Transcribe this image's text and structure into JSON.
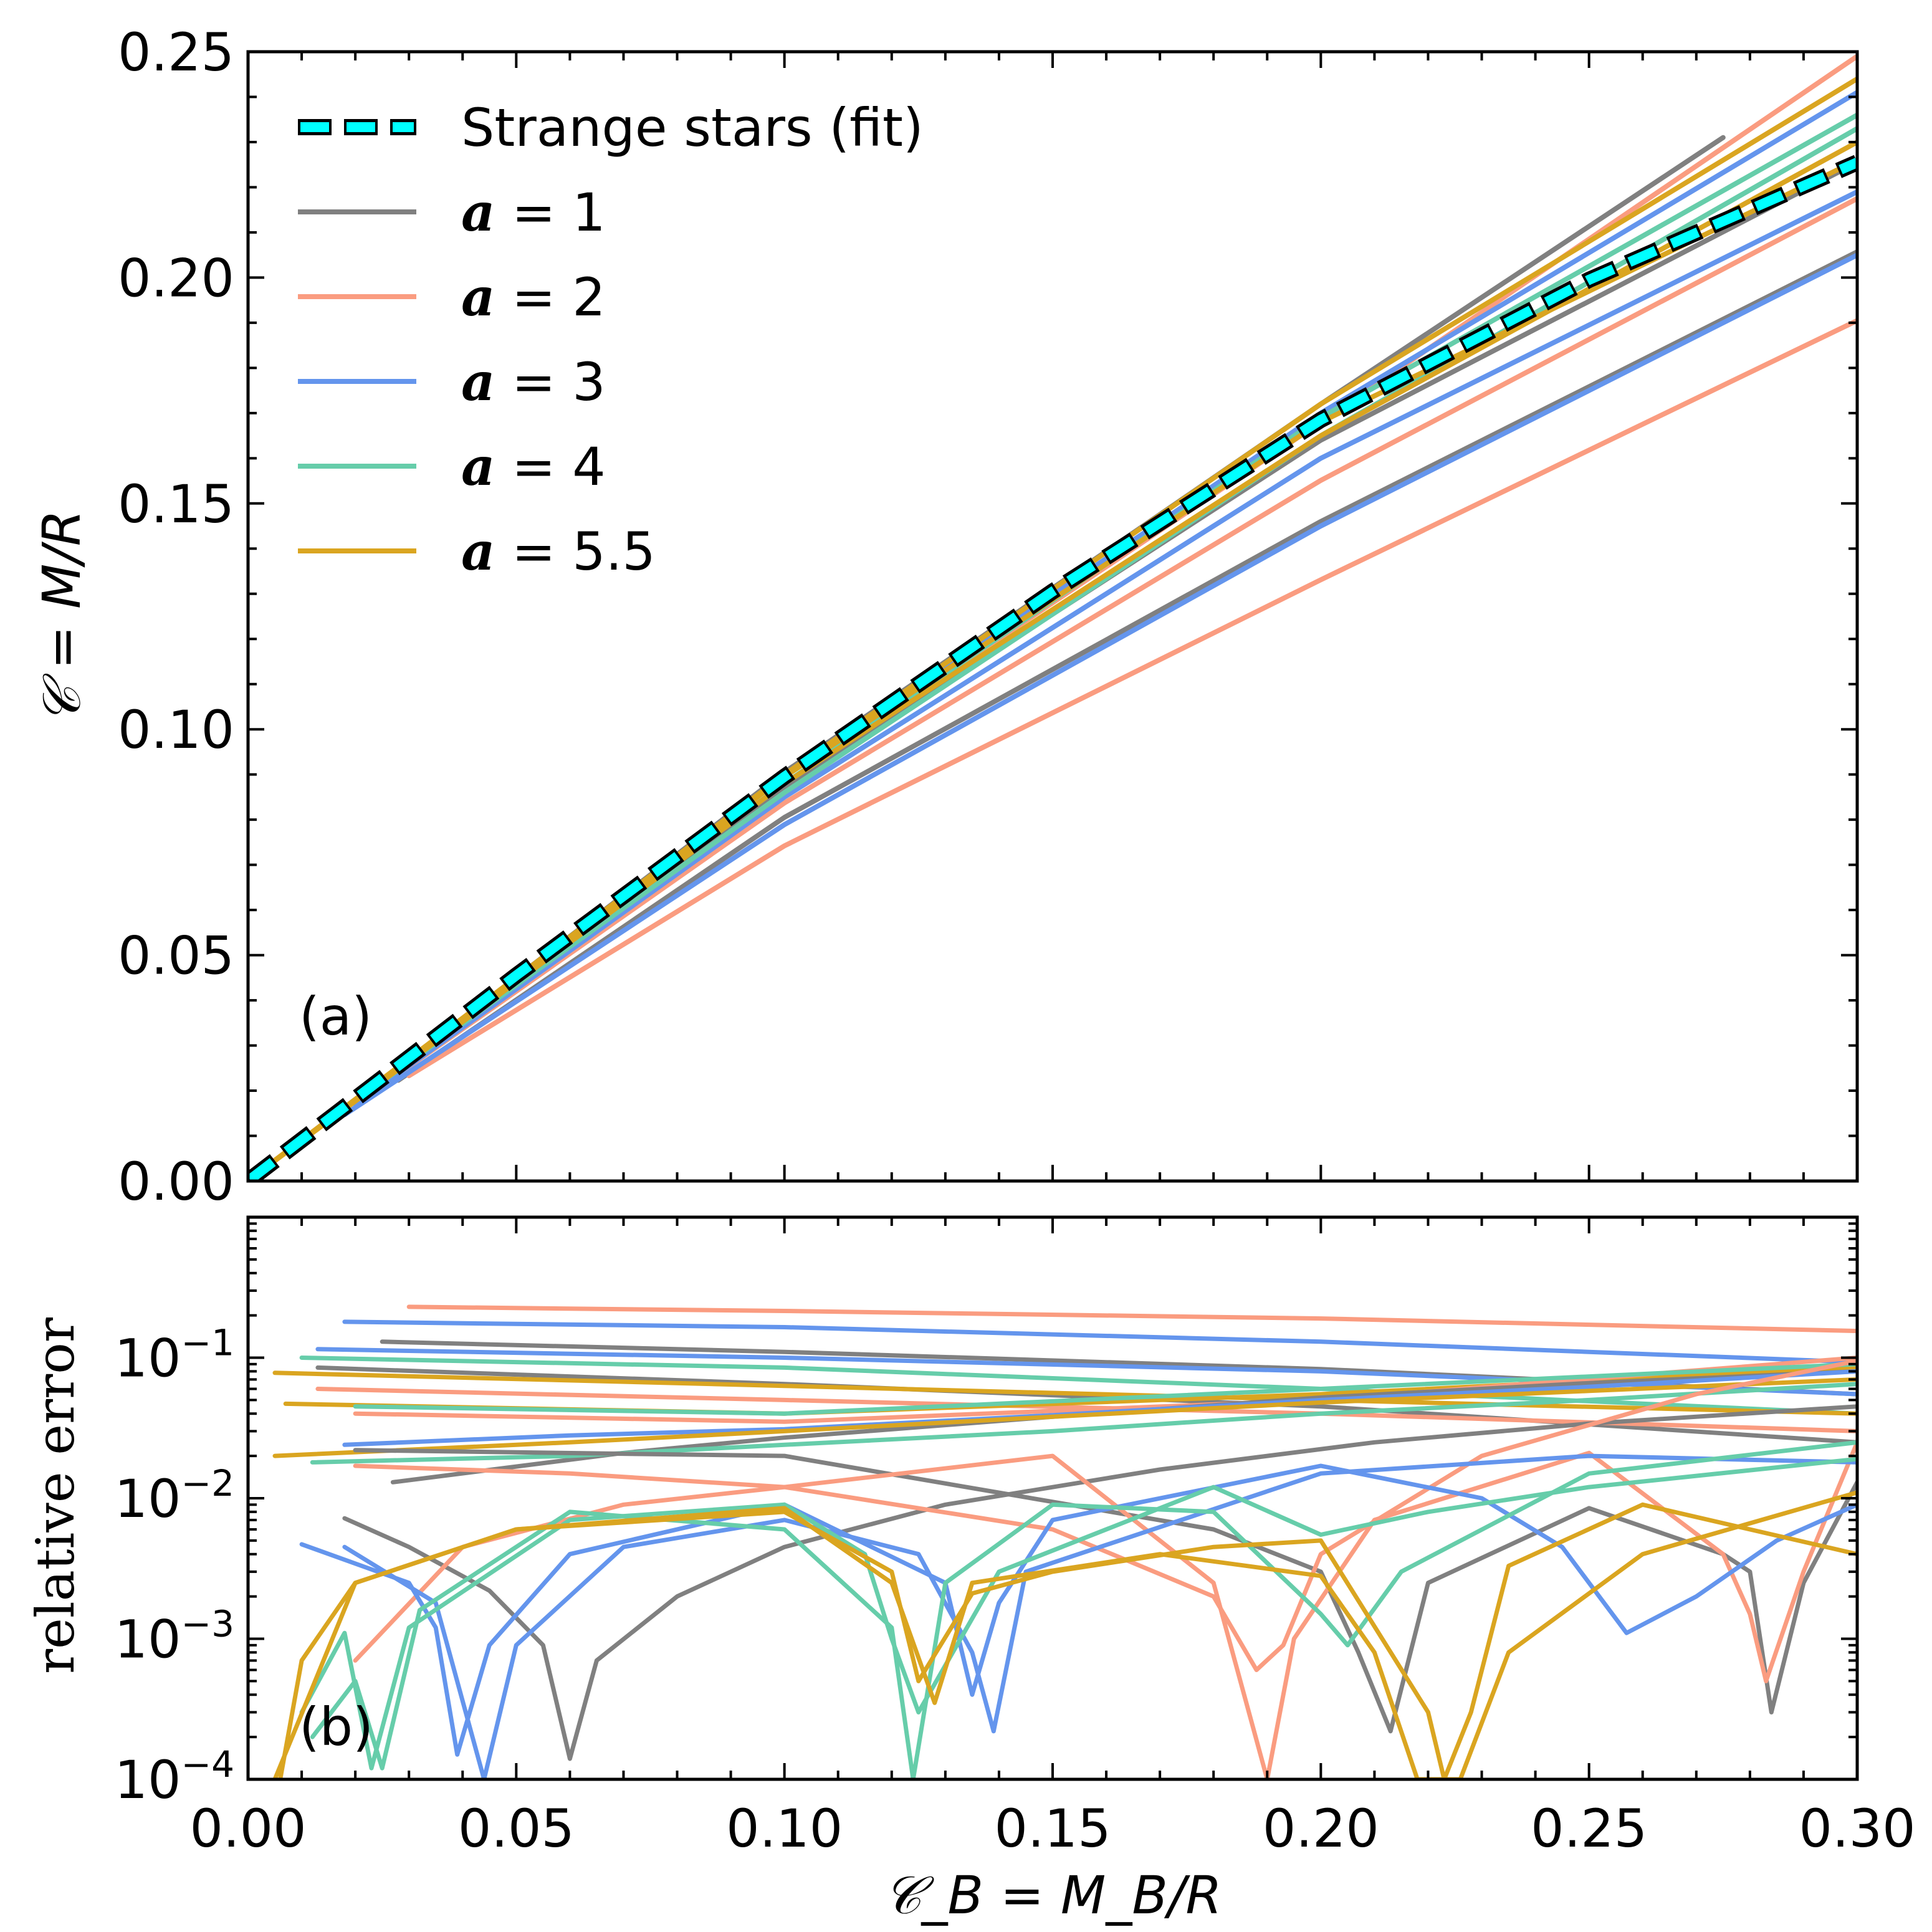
{
  "chart_data": [
    {
      "panel": "top",
      "type": "line",
      "panel_label": "(a)",
      "xlabel": "𝒞_B = M_B/R",
      "ylabel": "𝒞 = M/R",
      "xlim": [
        0,
        0.3
      ],
      "ylim": [
        0,
        0.25
      ],
      "x_ticks": [
        "0.00",
        "0.05",
        "0.10",
        "0.15",
        "0.20",
        "0.25",
        "0.30"
      ],
      "y_ticks": [
        "0.00",
        "0.05",
        "0.10",
        "0.15",
        "0.20",
        "0.25"
      ],
      "legend": {
        "position": "top-left",
        "entries": [
          {
            "label": "Strange stars (fit)",
            "style": "dashed",
            "color": "#00ffff"
          },
          {
            "symbol": "a",
            "label": " = 1",
            "color": "#808080"
          },
          {
            "symbol": "a",
            "label": " = 2",
            "color": "#fa9c80"
          },
          {
            "symbol": "a",
            "label": " = 3",
            "color": "#6495ed"
          },
          {
            "symbol": "a",
            "label": " = 4",
            "color": "#66cdaa"
          },
          {
            "symbol": "a",
            "label": " = 5.5",
            "color": "#daa520"
          }
        ]
      },
      "fit": {
        "name": "Strange stars (fit)",
        "x": [
          0,
          0.05,
          0.1,
          0.15,
          0.2,
          0.25,
          0.3
        ],
        "y": [
          0,
          0.0455,
          0.0895,
          0.1305,
          0.1685,
          0.1995,
          0.2255
        ]
      },
      "series": [
        {
          "group": "a = 1",
          "color": "#808080",
          "x": [
            0.02,
            0.1,
            0.2,
            0.275
          ],
          "y": [
            0.0178,
            0.0905,
            0.172,
            0.231
          ]
        },
        {
          "group": "a = 1",
          "color": "#808080",
          "x": [
            0.025,
            0.1,
            0.2,
            0.3
          ],
          "y": [
            0.021,
            0.087,
            0.164,
            0.2255
          ]
        },
        {
          "group": "a = 1",
          "color": "#808080",
          "x": [
            0.028,
            0.1,
            0.2,
            0.3
          ],
          "y": [
            0.0223,
            0.0805,
            0.146,
            0.2057
          ]
        },
        {
          "group": "a = 2",
          "color": "#fa9c80",
          "x": [
            0.03,
            0.1,
            0.2,
            0.3
          ],
          "y": [
            0.0233,
            0.0742,
            0.1331,
            0.1905
          ]
        },
        {
          "group": "a = 2",
          "color": "#fa9c80",
          "x": [
            0.02,
            0.1,
            0.2,
            0.3
          ],
          "y": [
            0.017,
            0.0837,
            0.1551,
            0.2175
          ]
        },
        {
          "group": "a = 2",
          "color": "#fa9c80",
          "x": [
            0.02,
            0.1,
            0.2,
            0.3
          ],
          "y": [
            0.018,
            0.088,
            0.168,
            0.249
          ]
        },
        {
          "group": "a = 3",
          "color": "#6495ed",
          "x": [
            0.018,
            0.1,
            0.2,
            0.3
          ],
          "y": [
            0.0147,
            0.0789,
            0.145,
            0.205
          ]
        },
        {
          "group": "a = 3",
          "color": "#6495ed",
          "x": [
            0.02,
            0.1,
            0.2,
            0.3
          ],
          "y": [
            0.017,
            0.085,
            0.16,
            0.219
          ]
        },
        {
          "group": "a = 3",
          "color": "#6495ed",
          "x": [
            0.02,
            0.1,
            0.2,
            0.3
          ],
          "y": [
            0.018,
            0.0895,
            0.17,
            0.241
          ]
        },
        {
          "group": "a = 4",
          "color": "#66cdaa",
          "x": [
            0.015,
            0.1,
            0.2,
            0.3
          ],
          "y": [
            0.0135,
            0.086,
            0.165,
            0.233
          ]
        },
        {
          "group": "a = 4",
          "color": "#66cdaa",
          "x": [
            0.015,
            0.1,
            0.2,
            0.3
          ],
          "y": [
            0.0137,
            0.088,
            0.169,
            0.236
          ]
        },
        {
          "group": "a = 5.5",
          "color": "#daa520",
          "x": [
            0.005,
            0.1,
            0.2,
            0.3
          ],
          "y": [
            0.0046,
            0.09,
            0.172,
            0.244
          ]
        },
        {
          "group": "a = 5.5",
          "color": "#daa520",
          "x": [
            0.005,
            0.1,
            0.2,
            0.3
          ],
          "y": [
            0.0045,
            0.088,
            0.165,
            0.23
          ]
        },
        {
          "group": "a = 5.5",
          "color": "#daa520",
          "x": [
            0.005,
            0.1,
            0.2,
            0.3
          ],
          "y": [
            0.0045,
            0.0895,
            0.168,
            0.226
          ]
        }
      ]
    },
    {
      "panel": "bottom",
      "type": "line",
      "panel_label": "(b)",
      "xlabel": "𝒞_B = M_B/R",
      "ylabel": "relative error",
      "yscale": "log",
      "xlim": [
        0,
        0.3
      ],
      "ylim": [
        0.0001,
        1
      ],
      "x_ticks": [
        "0.00",
        "0.05",
        "0.10",
        "0.15",
        "0.20",
        "0.25",
        "0.30"
      ],
      "y_ticks": [
        {
          "base": "10",
          "exp": "−1",
          "value": 0.1
        },
        {
          "base": "10",
          "exp": "−2",
          "value": 0.01
        },
        {
          "base": "10",
          "exp": "−3",
          "value": 0.001
        },
        {
          "base": "10",
          "exp": "−4",
          "value": 0.0001
        }
      ],
      "series": [
        {
          "color": "#fa9c80",
          "x": [
            0.03,
            0.1,
            0.2,
            0.3
          ],
          "y": [
            0.23,
            0.215,
            0.19,
            0.155
          ]
        },
        {
          "color": "#6495ed",
          "x": [
            0.018,
            0.1,
            0.2,
            0.3
          ],
          "y": [
            0.18,
            0.165,
            0.13,
            0.093
          ]
        },
        {
          "color": "#808080",
          "x": [
            0.025,
            0.1,
            0.2,
            0.3
          ],
          "y": [
            0.13,
            0.11,
            0.083,
            0.055
          ]
        },
        {
          "color": "#6495ed",
          "x": [
            0.013,
            0.1,
            0.2,
            0.3
          ],
          "y": [
            0.115,
            0.1,
            0.08,
            0.055
          ]
        },
        {
          "color": "#66cdaa",
          "x": [
            0.01,
            0.1,
            0.2,
            0.3
          ],
          "y": [
            0.1,
            0.085,
            0.06,
            0.04
          ]
        },
        {
          "color": "#808080",
          "x": [
            0.013,
            0.1,
            0.2,
            0.3
          ],
          "y": [
            0.085,
            0.065,
            0.045,
            0.025
          ]
        },
        {
          "color": "#fa9c80",
          "x": [
            0.013,
            0.1,
            0.2,
            0.3
          ],
          "y": [
            0.06,
            0.05,
            0.04,
            0.03
          ]
        },
        {
          "color": "#daa520",
          "x": [
            0.005,
            0.1,
            0.2,
            0.3
          ],
          "y": [
            0.078,
            0.063,
            0.05,
            0.04
          ]
        },
        {
          "color": "#daa520",
          "x": [
            0.007,
            0.1,
            0.2,
            0.3
          ],
          "y": [
            0.047,
            0.04,
            0.055,
            0.085
          ]
        },
        {
          "color": "#fa9c80",
          "x": [
            0.02,
            0.1,
            0.2,
            0.3
          ],
          "y": [
            0.04,
            0.035,
            0.05,
            0.1
          ]
        },
        {
          "color": "#66cdaa",
          "x": [
            0.02,
            0.1,
            0.2,
            0.3
          ],
          "y": [
            0.045,
            0.04,
            0.06,
            0.09
          ]
        },
        {
          "color": "#808080",
          "x": [
            0.027,
            0.07,
            0.1,
            0.15,
            0.2,
            0.25,
            0.3
          ],
          "y": [
            0.013,
            0.021,
            0.027,
            0.038,
            0.052,
            0.066,
            0.08
          ]
        },
        {
          "color": "#6495ed",
          "x": [
            0.018,
            0.06,
            0.1,
            0.15,
            0.2,
            0.25,
            0.3
          ],
          "y": [
            0.024,
            0.028,
            0.031,
            0.039,
            0.05,
            0.062,
            0.08
          ]
        },
        {
          "color": "#66cdaa",
          "x": [
            0.012,
            0.06,
            0.1,
            0.15,
            0.2,
            0.25,
            0.3
          ],
          "y": [
            0.018,
            0.02,
            0.024,
            0.03,
            0.04,
            0.05,
            0.065
          ]
        },
        {
          "color": "#daa520",
          "x": [
            0.005,
            0.06,
            0.1,
            0.15,
            0.2,
            0.25,
            0.3
          ],
          "y": [
            0.02,
            0.025,
            0.03,
            0.038,
            0.048,
            0.058,
            0.07
          ]
        },
        {
          "color": "#808080",
          "x": [
            0.018,
            0.03,
            0.045,
            0.055,
            0.06,
            0.065,
            0.08,
            0.1,
            0.13,
            0.17,
            0.21,
            0.25,
            0.3
          ],
          "y": [
            0.0072,
            0.0045,
            0.0022,
            0.0009,
            0.00014,
            0.0007,
            0.002,
            0.0045,
            0.009,
            0.016,
            0.025,
            0.034,
            0.045
          ]
        },
        {
          "color": "#808080",
          "x": [
            0.02,
            0.1,
            0.18,
            0.2,
            0.207,
            0.213,
            0.22,
            0.25,
            0.275,
            0.28,
            0.284,
            0.29,
            0.3
          ],
          "y": [
            0.022,
            0.02,
            0.006,
            0.003,
            0.0008,
            0.00022,
            0.0025,
            0.0085,
            0.004,
            0.003,
            0.0003,
            0.0025,
            0.013
          ]
        },
        {
          "color": "#fa9c80",
          "x": [
            0.02,
            0.04,
            0.07,
            0.1,
            0.15,
            0.18,
            0.19,
            0.195,
            0.21,
            0.25,
            0.275,
            0.28,
            0.283,
            0.29,
            0.3
          ],
          "y": [
            0.0007,
            0.0045,
            0.009,
            0.012,
            0.02,
            0.0025,
            0.0001,
            0.001,
            0.007,
            0.021,
            0.004,
            0.0015,
            0.0005,
            0.003,
            0.025
          ]
        },
        {
          "color": "#fa9c80",
          "x": [
            0.02,
            0.06,
            0.1,
            0.15,
            0.18,
            0.188,
            0.193,
            0.2,
            0.23,
            0.27,
            0.3
          ],
          "y": [
            0.017,
            0.015,
            0.012,
            0.006,
            0.002,
            0.0006,
            0.0009,
            0.004,
            0.02,
            0.055,
            0.095
          ]
        },
        {
          "color": "#6495ed",
          "x": [
            0.01,
            0.03,
            0.035,
            0.039,
            0.045,
            0.06,
            0.1,
            0.13,
            0.135,
            0.14,
            0.15,
            0.2,
            0.23,
            0.245,
            0.257,
            0.27,
            0.285,
            0.3
          ],
          "y": [
            0.0047,
            0.0025,
            0.0012,
            0.00015,
            0.0009,
            0.004,
            0.009,
            0.0025,
            0.0004,
            0.0018,
            0.007,
            0.017,
            0.01,
            0.0045,
            0.0011,
            0.002,
            0.005,
            0.009
          ]
        },
        {
          "color": "#6495ed",
          "x": [
            0.018,
            0.035,
            0.044,
            0.05,
            0.07,
            0.1,
            0.125,
            0.135,
            0.139,
            0.145,
            0.2,
            0.25,
            0.3
          ],
          "y": [
            0.0045,
            0.0018,
            0.0001,
            0.0009,
            0.0045,
            0.007,
            0.004,
            0.0008,
            0.00022,
            0.003,
            0.015,
            0.02,
            0.018
          ]
        },
        {
          "color": "#66cdaa",
          "x": [
            0.01,
            0.018,
            0.023,
            0.03,
            0.06,
            0.1,
            0.115,
            0.12,
            0.125,
            0.14,
            0.18,
            0.2,
            0.22,
            0.25,
            0.3
          ],
          "y": [
            0.0003,
            0.0011,
            0.00012,
            0.0012,
            0.007,
            0.009,
            0.004,
            0.001,
            0.0003,
            0.003,
            0.012,
            0.0055,
            0.008,
            0.012,
            0.019
          ]
        },
        {
          "color": "#66cdaa",
          "x": [
            0.012,
            0.02,
            0.025,
            0.032,
            0.06,
            0.1,
            0.12,
            0.124,
            0.13,
            0.15,
            0.18,
            0.2,
            0.205,
            0.215,
            0.25,
            0.3
          ],
          "y": [
            0.0002,
            0.0005,
            0.00012,
            0.0016,
            0.008,
            0.006,
            0.0012,
            0.0001,
            0.0025,
            0.009,
            0.008,
            0.0015,
            0.0009,
            0.003,
            0.015,
            0.025
          ]
        },
        {
          "color": "#daa520",
          "x": [
            0.006,
            0.01,
            0.02,
            0.05,
            0.1,
            0.12,
            0.125,
            0.135,
            0.15,
            0.18,
            0.2,
            0.22,
            0.223,
            0.228,
            0.235,
            0.26,
            0.3
          ],
          "y": [
            0.0001,
            0.0007,
            0.0025,
            0.006,
            0.008,
            0.003,
            0.0005,
            0.0021,
            0.003,
            0.0045,
            0.005,
            0.0003,
            0.0001,
            0.0003,
            0.0033,
            0.009,
            0.004
          ]
        },
        {
          "color": "#daa520",
          "x": [
            0.005,
            0.02,
            0.05,
            0.1,
            0.12,
            0.128,
            0.135,
            0.17,
            0.2,
            0.21,
            0.218,
            0.226,
            0.235,
            0.26,
            0.3
          ],
          "y": [
            0.0001,
            0.0025,
            0.006,
            0.0085,
            0.0025,
            0.00035,
            0.0025,
            0.004,
            0.0028,
            0.0008,
            0.0001,
            0.0001,
            0.0008,
            0.004,
            0.011
          ]
        }
      ]
    }
  ]
}
